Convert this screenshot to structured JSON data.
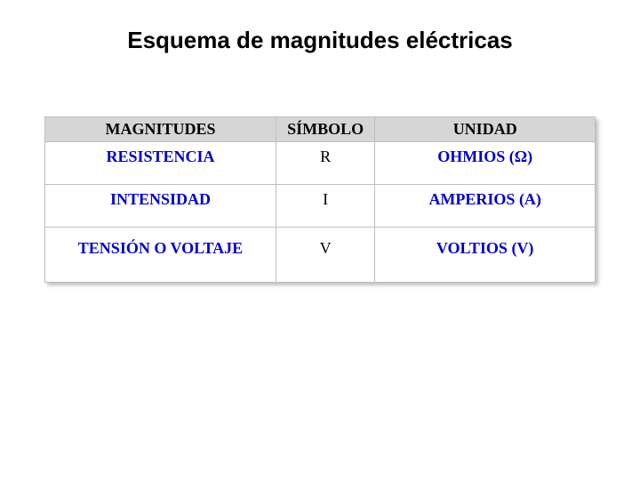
{
  "title": "Esquema de magnitudes eléctricas",
  "table": {
    "type": "table",
    "background_color": "#ffffff",
    "border_color": "#bfbfbf",
    "header_bg": "#d6d6d6",
    "header_text_color": "#000000",
    "name_color": "#0000cc",
    "symbol_color": "#000000",
    "unit_color": "#0000cc",
    "header_fontsize": 18,
    "body_fontsize": 18,
    "columns": [
      "MAGNITUDES",
      "SÍMBOLO",
      "UNIDAD"
    ],
    "rows": [
      {
        "name": "RESISTENCIA",
        "symbol": "R",
        "unit": "OHMIOS   (Ω)"
      },
      {
        "name": "INTENSIDAD",
        "symbol": "I",
        "unit": "AMPERIOS (A)"
      },
      {
        "name": "TENSIÓN O VOLTAJE",
        "symbol": "V",
        "unit": "VOLTIOS  (V)"
      }
    ]
  }
}
